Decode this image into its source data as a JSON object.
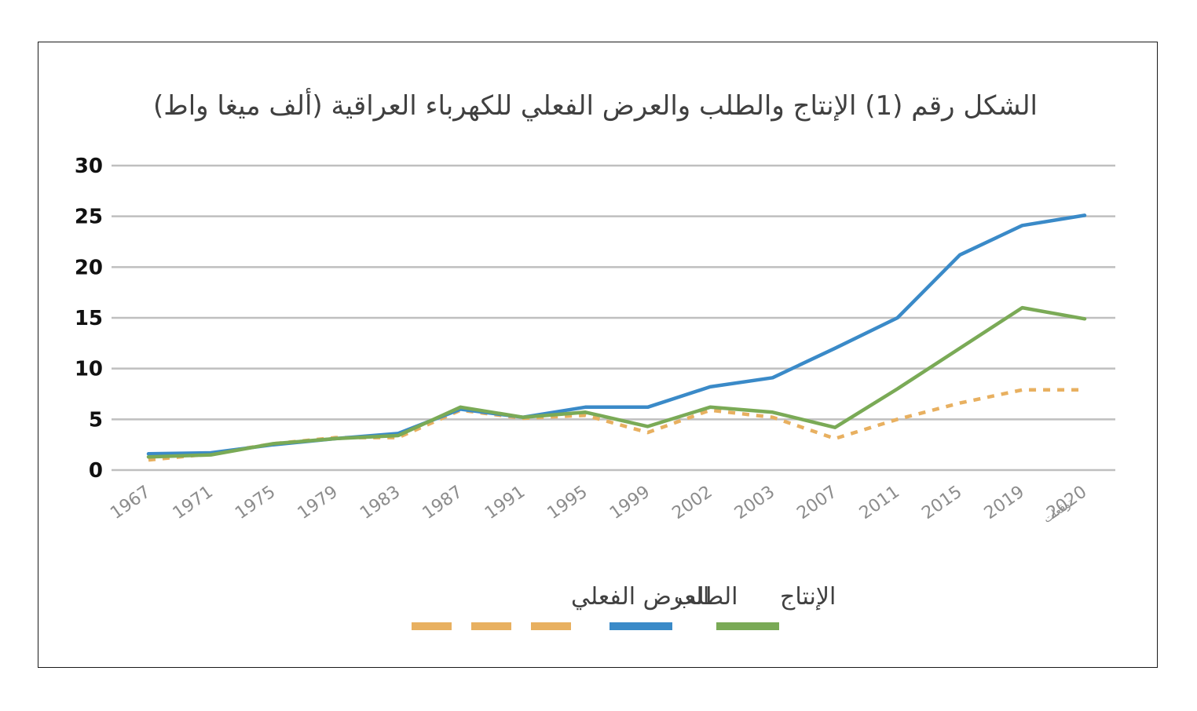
{
  "chart_data": {
    "type": "line",
    "title": "الشكل رقم (1) الإنتاج والطلب والعرض الفعلي للكهرباء العراقية (ألف ميغا واط)",
    "xlabel": "",
    "ylabel": "",
    "categories": [
      "1967",
      "1971",
      "1975",
      "1979",
      "1983",
      "1987",
      "1991",
      "1995",
      "1999",
      "2002",
      "2003",
      "2007",
      "2011",
      "2015",
      "2019",
      "2020"
    ],
    "last_category_note": "توقعات",
    "ylim": [
      0,
      30
    ],
    "yticks": [
      0,
      5,
      10,
      15,
      20,
      25,
      30
    ],
    "grid": true,
    "legend_position": "bottom",
    "series": [
      {
        "name": "الإنتاج",
        "color": "#7aaa56",
        "style": "solid",
        "values": [
          1.3,
          1.5,
          2.6,
          3.1,
          3.4,
          6.2,
          5.2,
          5.7,
          4.3,
          6.2,
          5.7,
          4.2,
          8.0,
          12.0,
          16.0,
          14.9
        ]
      },
      {
        "name": "الطلب",
        "color": "#3a8ac8",
        "style": "solid",
        "values": [
          1.6,
          1.7,
          2.5,
          3.1,
          3.6,
          6.0,
          5.2,
          6.2,
          6.2,
          8.2,
          9.1,
          12.0,
          15.0,
          21.2,
          24.1,
          25.1
        ]
      },
      {
        "name": "العرض الفعلي",
        "color": "#e8b060",
        "style": "dashed",
        "values": [
          1.0,
          1.6,
          2.6,
          3.2,
          3.2,
          5.9,
          5.1,
          5.4,
          3.7,
          5.9,
          5.2,
          3.1,
          5.0,
          6.6,
          7.9,
          7.9
        ]
      }
    ]
  }
}
